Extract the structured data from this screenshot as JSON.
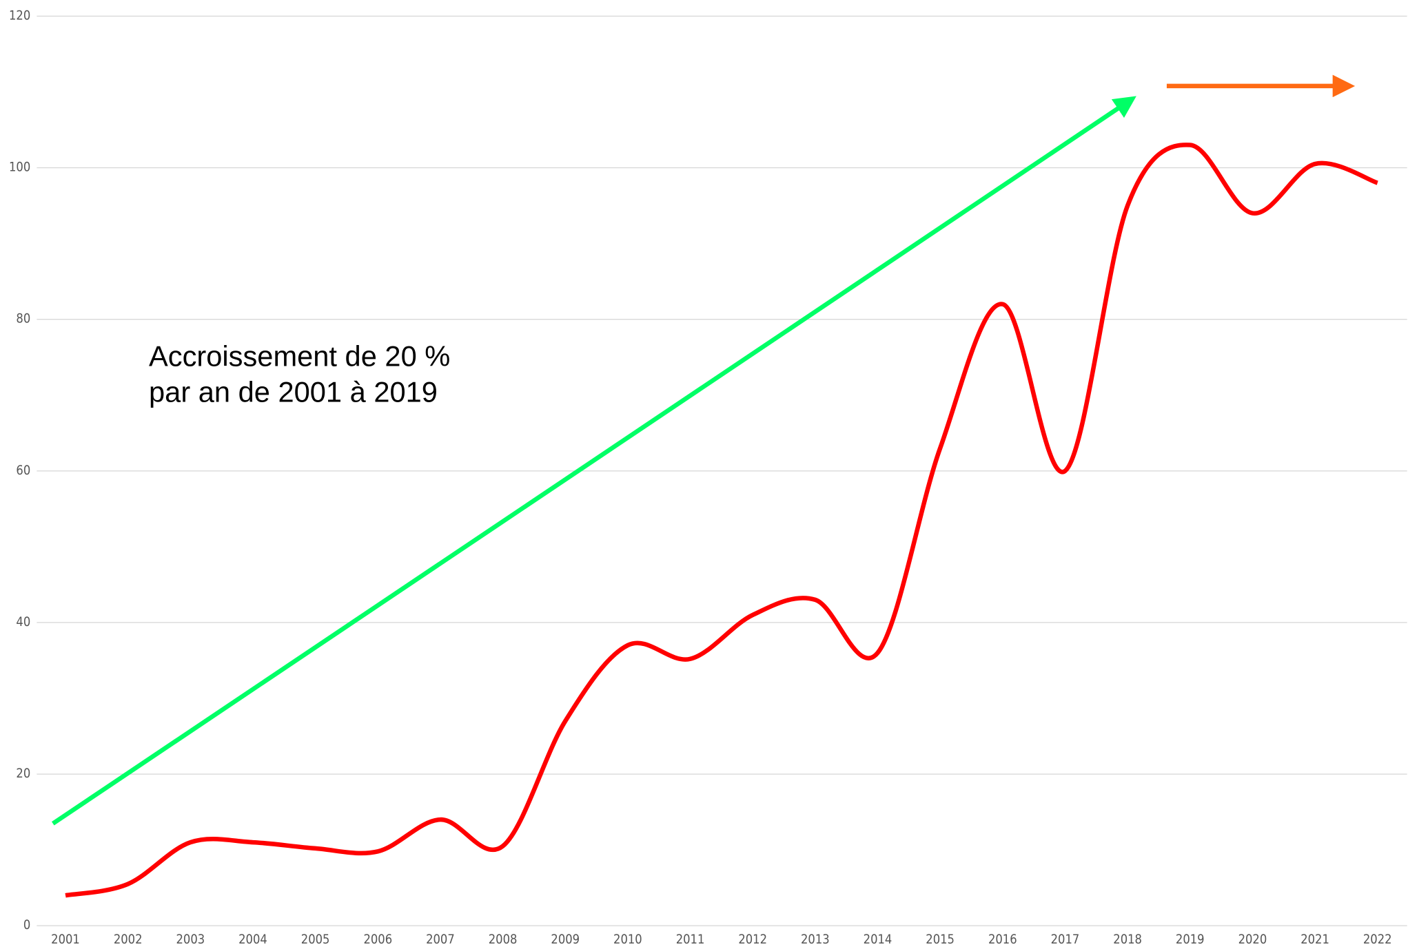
{
  "chart_data": {
    "type": "line",
    "categories": [
      "2001",
      "2002",
      "2003",
      "2004",
      "2005",
      "2006",
      "2007",
      "2008",
      "2009",
      "2010",
      "2011",
      "2012",
      "2013",
      "2014",
      "2015",
      "2016",
      "2017",
      "2018",
      "2019",
      "2020",
      "2021",
      "2022"
    ],
    "series": [
      {
        "color": "#ff0000",
        "values": [
          4,
          5.5,
          11,
          11,
          10.2,
          9.8,
          14,
          10.5,
          27,
          37,
          35.2,
          41,
          43,
          36,
          63,
          82,
          60,
          95,
          103,
          94,
          100.5,
          98
        ]
      }
    ],
    "ylim": [
      0,
      120
    ],
    "yticks": [
      0,
      20,
      40,
      60,
      80,
      100,
      120
    ],
    "grid": true,
    "annotations": [
      "Accroissement de 20 %",
      "par an de 2001 à 2019"
    ]
  }
}
